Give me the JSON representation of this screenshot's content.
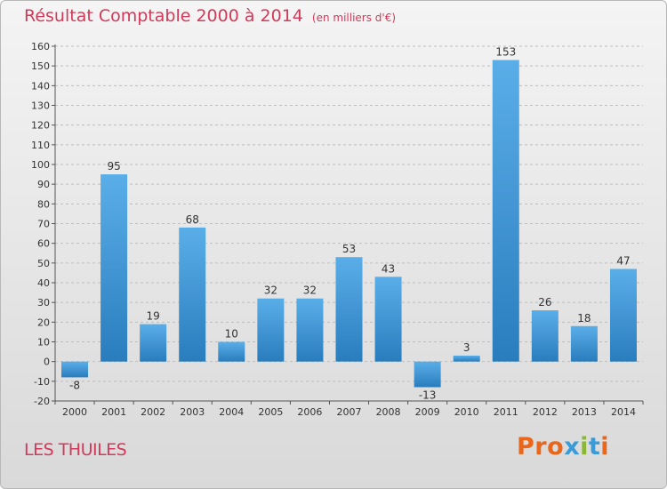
{
  "header": {
    "title": "Résultat Comptable 2000 à 2014",
    "subtitle": "(en milliers d'€)"
  },
  "footer": {
    "commune": "LES THUILES",
    "logo_text": "Proxiti",
    "logo_colors": [
      "#e9661a",
      "#e9661a",
      "#e9661a",
      "#3a9bd9",
      "#8ab834",
      "#3a9bd9",
      "#e9661a"
    ]
  },
  "chart_data": {
    "type": "bar",
    "title": "Résultat Comptable 2000 à 2014",
    "subtitle": "(en milliers d'€)",
    "categories": [
      "2000",
      "2001",
      "2002",
      "2003",
      "2004",
      "2005",
      "2006",
      "2007",
      "2008",
      "2009",
      "2010",
      "2011",
      "2012",
      "2013",
      "2014"
    ],
    "values": [
      -8,
      95,
      19,
      68,
      10,
      32,
      32,
      53,
      43,
      -13,
      3,
      153,
      26,
      18,
      47
    ],
    "ylim": [
      -20,
      160
    ],
    "yticks": [
      -20,
      -10,
      0,
      10,
      20,
      30,
      40,
      50,
      60,
      70,
      80,
      90,
      100,
      110,
      120,
      130,
      140,
      150,
      160
    ],
    "grid": "horizontal-dashed",
    "colors": {
      "bar_light": "#5aaee8",
      "bar_dark": "#2a7dbd",
      "title": "#d23a5a",
      "grid": "#bdbdbd"
    }
  }
}
